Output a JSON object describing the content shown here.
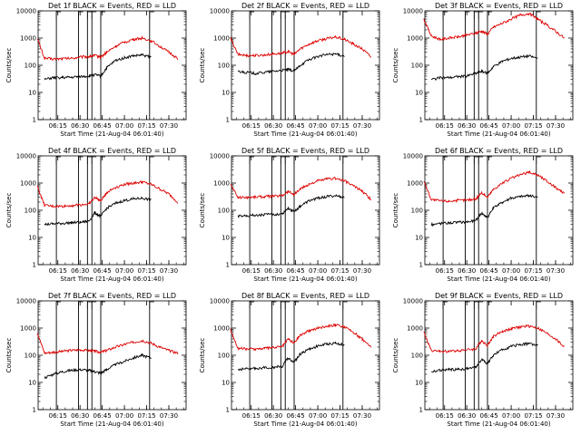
{
  "figure": {
    "x_axis_label": "Start Time (21-Aug-04 06:01:40)",
    "y_axis_label": "Counts/sec",
    "x_tick_labels": [
      "06:15",
      "06:30",
      "06:45",
      "07:00",
      "07:15",
      "07:30"
    ],
    "y_tick_labels": [
      "1",
      "10",
      "100",
      "1000",
      "10000"
    ],
    "series_colors": {
      "events": "#000000",
      "lld": "#dd0000"
    }
  },
  "chart_data": [
    {
      "type": "line",
      "title": "Det 1f BLACK = Events, RED = LLD",
      "log_y": true,
      "ylim": [
        1,
        10000
      ],
      "xlim": [
        "06:01:40",
        "07:41:40"
      ],
      "x": [
        "06:01",
        "06:06",
        "06:12",
        "06:18",
        "06:24",
        "06:30",
        "06:36",
        "06:40",
        "06:44",
        "06:48",
        "06:54",
        "07:00",
        "07:06",
        "07:12",
        "07:18",
        "07:24",
        "07:30",
        "07:36"
      ],
      "series": [
        {
          "name": "LLD",
          "values": [
            1000,
            180,
            170,
            175,
            180,
            200,
            210,
            230,
            200,
            300,
            500,
            700,
            900,
            1000,
            800,
            500,
            300,
            180
          ]
        },
        {
          "name": "Events",
          "values": [
            null,
            30,
            35,
            35,
            36,
            38,
            40,
            45,
            40,
            80,
            150,
            190,
            220,
            240,
            200,
            null,
            null,
            null
          ]
        }
      ]
    },
    {
      "type": "line",
      "title": "Det 2f BLACK = Events, RED = LLD",
      "log_y": true,
      "ylim": [
        1,
        10000
      ],
      "xlim": [
        "06:01:40",
        "07:41:40"
      ],
      "x": [
        "06:01",
        "06:06",
        "06:12",
        "06:18",
        "06:24",
        "06:30",
        "06:36",
        "06:40",
        "06:44",
        "06:48",
        "06:54",
        "07:00",
        "07:06",
        "07:12",
        "07:18",
        "07:24",
        "07:30",
        "07:36"
      ],
      "series": [
        {
          "name": "LLD",
          "values": [
            1000,
            250,
            230,
            230,
            240,
            260,
            280,
            320,
            250,
            400,
            600,
            800,
            950,
            1100,
            900,
            600,
            400,
            200
          ]
        },
        {
          "name": "Events",
          "values": [
            null,
            60,
            55,
            50,
            55,
            60,
            65,
            70,
            60,
            100,
            160,
            210,
            250,
            260,
            220,
            null,
            null,
            null
          ]
        }
      ]
    },
    {
      "type": "line",
      "title": "Det 3f BLACK = Events, RED = LLD",
      "log_y": true,
      "ylim": [
        1,
        10000
      ],
      "xlim": [
        "06:01:40",
        "07:41:40"
      ],
      "x": [
        "06:01",
        "06:06",
        "06:12",
        "06:18",
        "06:24",
        "06:30",
        "06:36",
        "06:40",
        "06:44",
        "06:48",
        "06:54",
        "07:00",
        "07:06",
        "07:12",
        "07:18",
        "07:24",
        "07:30",
        "07:36"
      ],
      "series": [
        {
          "name": "LLD",
          "values": [
            5000,
            1200,
            900,
            1000,
            1100,
            1300,
            1500,
            1800,
            1400,
            2500,
            3500,
            5000,
            7000,
            8000,
            5000,
            3000,
            1800,
            1000
          ]
        },
        {
          "name": "Events",
          "values": [
            null,
            30,
            35,
            35,
            38,
            40,
            50,
            60,
            50,
            90,
            140,
            180,
            200,
            220,
            180,
            null,
            null,
            null
          ]
        }
      ]
    },
    {
      "type": "line",
      "title": "Det 4f BLACK = Events, RED = LLD",
      "log_y": true,
      "ylim": [
        1,
        10000
      ],
      "xlim": [
        "06:01:40",
        "07:41:40"
      ],
      "x": [
        "06:01",
        "06:06",
        "06:12",
        "06:18",
        "06:24",
        "06:30",
        "06:36",
        "06:40",
        "06:44",
        "06:48",
        "06:54",
        "07:00",
        "07:06",
        "07:12",
        "07:18",
        "07:24",
        "07:30",
        "07:36"
      ],
      "series": [
        {
          "name": "LLD",
          "values": [
            800,
            150,
            140,
            140,
            150,
            160,
            170,
            300,
            220,
            450,
            700,
            900,
            1000,
            1100,
            900,
            600,
            400,
            200
          ]
        },
        {
          "name": "Events",
          "values": [
            null,
            30,
            32,
            33,
            35,
            36,
            40,
            80,
            60,
            120,
            180,
            230,
            260,
            280,
            240,
            null,
            null,
            null
          ]
        }
      ]
    },
    {
      "type": "line",
      "title": "Det 5f BLACK = Events, RED = LLD",
      "log_y": true,
      "ylim": [
        1,
        10000
      ],
      "xlim": [
        "06:01:40",
        "07:41:40"
      ],
      "x": [
        "06:01",
        "06:06",
        "06:12",
        "06:18",
        "06:24",
        "06:30",
        "06:36",
        "06:40",
        "06:44",
        "06:48",
        "06:54",
        "07:00",
        "07:06",
        "07:12",
        "07:18",
        "07:24",
        "07:30",
        "07:36"
      ],
      "series": [
        {
          "name": "LLD",
          "values": [
            900,
            300,
            300,
            310,
            320,
            330,
            350,
            500,
            380,
            600,
            900,
            1200,
            1400,
            1500,
            1200,
            800,
            500,
            250
          ]
        },
        {
          "name": "Events",
          "values": [
            null,
            60,
            65,
            65,
            70,
            70,
            75,
            120,
            90,
            140,
            220,
            280,
            320,
            340,
            300,
            null,
            null,
            null
          ]
        }
      ]
    },
    {
      "type": "line",
      "title": "Det 6f BLACK = Events, RED = LLD",
      "log_y": true,
      "ylim": [
        1,
        10000
      ],
      "xlim": [
        "06:01:40",
        "07:41:40"
      ],
      "x": [
        "06:01",
        "06:06",
        "06:12",
        "06:18",
        "06:24",
        "06:30",
        "06:36",
        "06:40",
        "06:44",
        "06:48",
        "06:54",
        "07:00",
        "07:06",
        "07:12",
        "07:18",
        "07:24",
        "07:30",
        "07:36"
      ],
      "series": [
        {
          "name": "LLD",
          "values": [
            1200,
            250,
            220,
            220,
            230,
            240,
            260,
            450,
            300,
            600,
            1000,
            1500,
            2000,
            2500,
            2000,
            1200,
            700,
            400
          ]
        },
        {
          "name": "Events",
          "values": [
            null,
            30,
            33,
            35,
            36,
            38,
            42,
            80,
            55,
            120,
            200,
            280,
            320,
            350,
            300,
            null,
            null,
            null
          ]
        }
      ]
    },
    {
      "type": "line",
      "title": "Det 7f BLACK = Events, RED = LLD",
      "log_y": true,
      "ylim": [
        1,
        10000
      ],
      "xlim": [
        "06:01:40",
        "07:41:40"
      ],
      "x": [
        "06:01",
        "06:06",
        "06:12",
        "06:18",
        "06:24",
        "06:30",
        "06:36",
        "06:40",
        "06:44",
        "06:48",
        "06:54",
        "07:00",
        "07:06",
        "07:12",
        "07:18",
        "07:24",
        "07:30",
        "07:36"
      ],
      "series": [
        {
          "name": "LLD",
          "values": [
            700,
            120,
            130,
            140,
            150,
            160,
            150,
            140,
            130,
            150,
            200,
            250,
            300,
            350,
            280,
            200,
            150,
            120
          ]
        },
        {
          "name": "Events",
          "values": [
            null,
            15,
            20,
            25,
            28,
            30,
            28,
            25,
            22,
            30,
            45,
            60,
            80,
            100,
            80,
            null,
            null,
            null
          ]
        }
      ]
    },
    {
      "type": "line",
      "title": "Det 8f BLACK = Events, RED = LLD",
      "log_y": true,
      "ylim": [
        1,
        10000
      ],
      "xlim": [
        "06:01:40",
        "07:41:40"
      ],
      "x": [
        "06:01",
        "06:06",
        "06:12",
        "06:18",
        "06:24",
        "06:30",
        "06:36",
        "06:40",
        "06:44",
        "06:48",
        "06:54",
        "07:00",
        "07:06",
        "07:12",
        "07:18",
        "07:24",
        "07:30",
        "07:36"
      ],
      "series": [
        {
          "name": "LLD",
          "values": [
            900,
            180,
            170,
            170,
            180,
            190,
            210,
            400,
            280,
            550,
            800,
            1000,
            1200,
            1300,
            1100,
            700,
            400,
            200
          ]
        },
        {
          "name": "Events",
          "values": [
            null,
            30,
            32,
            33,
            35,
            36,
            40,
            80,
            55,
            110,
            170,
            220,
            260,
            280,
            240,
            null,
            null,
            null
          ]
        }
      ]
    },
    {
      "type": "line",
      "title": "Det 9f BLACK = Events, RED = LLD",
      "log_y": true,
      "ylim": [
        1,
        10000
      ],
      "xlim": [
        "06:01:40",
        "07:41:40"
      ],
      "x": [
        "06:01",
        "06:06",
        "06:12",
        "06:18",
        "06:24",
        "06:30",
        "06:36",
        "06:40",
        "06:44",
        "06:48",
        "06:54",
        "07:00",
        "07:06",
        "07:12",
        "07:18",
        "07:24",
        "07:30",
        "07:36"
      ],
      "series": [
        {
          "name": "LLD",
          "values": [
            700,
            150,
            140,
            140,
            150,
            160,
            170,
            350,
            230,
            500,
            750,
            950,
            1100,
            1200,
            1000,
            650,
            400,
            200
          ]
        },
        {
          "name": "Events",
          "values": [
            null,
            25,
            28,
            30,
            30,
            32,
            36,
            70,
            50,
            100,
            160,
            210,
            250,
            270,
            230,
            null,
            null,
            null
          ]
        }
      ]
    }
  ]
}
